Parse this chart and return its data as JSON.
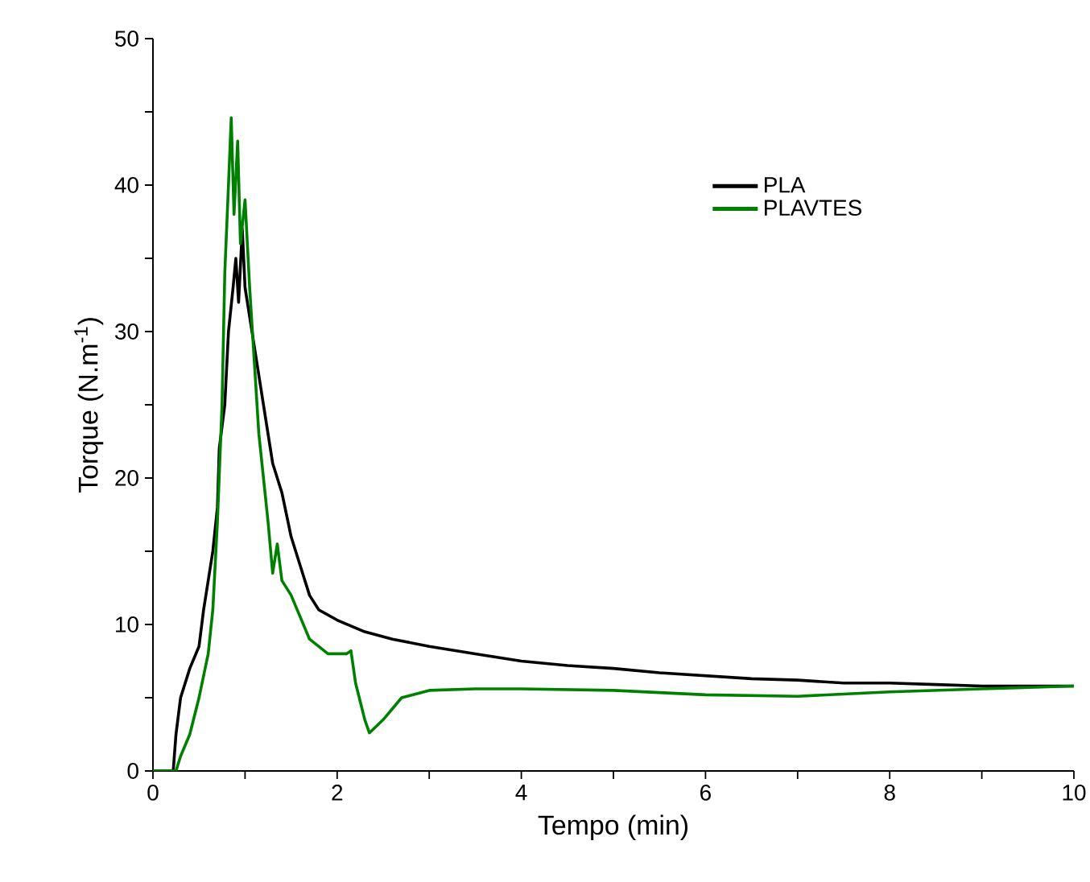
{
  "chart_data": {
    "type": "line",
    "xlabel": "Tempo (min)",
    "ylabel": "Torque (N.m$^{-1}$)",
    "xlim": [
      0,
      10
    ],
    "ylim": [
      0,
      50
    ],
    "xticks": [
      0,
      {
        "value": 1,
        "label": null
      },
      2,
      {
        "value": 3,
        "label": null
      },
      4,
      {
        "value": 5,
        "label": null
      },
      6,
      {
        "value": 7,
        "label": null
      },
      8,
      {
        "value": 9,
        "label": null
      },
      10
    ],
    "yticks": [
      0,
      {
        "value": 5,
        "label": null
      },
      10,
      {
        "value": 15,
        "label": null
      },
      20,
      {
        "value": 25,
        "label": null
      },
      30,
      {
        "value": 35,
        "label": null
      },
      40,
      {
        "value": 45,
        "label": null
      },
      50
    ],
    "legend": "top right",
    "line_style": "solid",
    "series": [
      {
        "name": "PLA",
        "color": "#000000",
        "x": [
          0,
          0.22,
          0.25,
          0.3,
          0.4,
          0.5,
          0.55,
          0.6,
          0.65,
          0.7,
          0.72,
          0.78,
          0.82,
          0.87,
          0.9,
          0.93,
          0.97,
          1.0,
          1.05,
          1.1,
          1.15,
          1.2,
          1.25,
          1.3,
          1.4,
          1.5,
          1.6,
          1.7,
          1.8,
          2,
          2.3,
          2.6,
          3,
          3.5,
          4,
          4.5,
          5,
          5.5,
          6,
          6.5,
          7,
          7.5,
          8,
          8.5,
          9,
          9.5,
          10
        ],
        "values": [
          0,
          0,
          2.5,
          5,
          7,
          8.5,
          11,
          13,
          15,
          18,
          22,
          25,
          30,
          33,
          35,
          32,
          37,
          33,
          31,
          29,
          27,
          25,
          23,
          21,
          19,
          16,
          14,
          12,
          11,
          10.3,
          9.5,
          9,
          8.5,
          8,
          7.5,
          7.2,
          7,
          6.7,
          6.5,
          6.3,
          6.2,
          6,
          6,
          5.9,
          5.8,
          5.8,
          5.8
        ]
      },
      {
        "name": "PLAVTES",
        "color": "#008000",
        "x": [
          0,
          0.25,
          0.3,
          0.4,
          0.5,
          0.6,
          0.65,
          0.7,
          0.75,
          0.78,
          0.82,
          0.85,
          0.88,
          0.92,
          0.95,
          1.0,
          1.05,
          1.1,
          1.15,
          1.2,
          1.25,
          1.3,
          1.35,
          1.4,
          1.5,
          1.6,
          1.7,
          1.8,
          1.9,
          2.0,
          2.1,
          2.15,
          2.2,
          2.3,
          2.35,
          2.5,
          2.7,
          3,
          3.5,
          4,
          5,
          6,
          7,
          8,
          9,
          10
        ],
        "values": [
          0,
          0,
          1,
          2.5,
          5,
          8,
          11,
          17,
          25,
          34,
          40,
          44.6,
          38,
          43,
          36,
          39,
          33,
          28,
          23,
          20,
          17,
          13.5,
          15.5,
          13,
          12,
          10.5,
          9,
          8.5,
          8,
          8,
          8,
          8.2,
          6,
          3.5,
          2.6,
          3.5,
          5,
          5.5,
          5.6,
          5.6,
          5.5,
          5.2,
          5.1,
          5.4,
          5.6,
          5.8
        ]
      }
    ]
  }
}
